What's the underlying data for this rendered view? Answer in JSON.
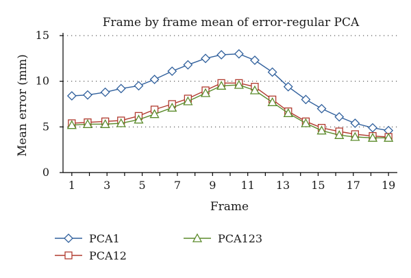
{
  "chart_data": {
    "type": "line",
    "title": "Frame by frame mean of error-regular PCA",
    "xlabel": "Frame",
    "ylabel": "Mean error (mm)",
    "xlim": [
      0.5,
      19.5
    ],
    "ylim": [
      0,
      15
    ],
    "xticks": [
      1,
      3,
      5,
      7,
      9,
      11,
      13,
      15,
      17,
      19
    ],
    "yticks": [
      0,
      5,
      10,
      15
    ],
    "grid": true,
    "legend_position": "bottom",
    "series": [
      {
        "name": "PCA1",
        "color": "#2f5f9c",
        "marker": "diamond",
        "x": [
          1,
          1.9,
          2.9,
          3.8,
          4.8,
          5.7,
          6.7,
          7.6,
          8.6,
          9.5,
          10.5,
          11.4,
          12.4,
          13.3,
          14.3,
          15.2,
          16.2,
          17.1,
          18.1,
          19
        ],
        "y": [
          8.4,
          8.5,
          8.8,
          9.2,
          9.5,
          10.2,
          11.1,
          11.8,
          12.5,
          12.9,
          13.0,
          12.3,
          11.0,
          9.4,
          8.0,
          7.0,
          6.1,
          5.4,
          4.9,
          4.6
        ]
      },
      {
        "name": "PCA12",
        "color": "#b03a2e",
        "marker": "square",
        "x": [
          1,
          1.9,
          2.9,
          3.8,
          4.8,
          5.7,
          6.7,
          7.6,
          8.6,
          9.5,
          10.5,
          11.4,
          12.4,
          13.3,
          14.3,
          15.2,
          16.2,
          17.1,
          18.1,
          19
        ],
        "y": [
          5.4,
          5.5,
          5.6,
          5.7,
          6.2,
          6.9,
          7.5,
          8.1,
          9.0,
          9.8,
          9.8,
          9.4,
          8.0,
          6.7,
          5.6,
          4.9,
          4.5,
          4.2,
          4.0,
          3.9
        ]
      },
      {
        "name": "PCA123",
        "color": "#5a8a2a",
        "marker": "triangle",
        "x": [
          1,
          1.9,
          2.9,
          3.8,
          4.8,
          5.7,
          6.7,
          7.6,
          8.6,
          9.5,
          10.5,
          11.4,
          12.4,
          13.3,
          14.3,
          15.2,
          16.2,
          17.1,
          18.1,
          19
        ],
        "y": [
          5.2,
          5.3,
          5.3,
          5.4,
          5.8,
          6.4,
          7.1,
          7.8,
          8.7,
          9.5,
          9.6,
          9.0,
          7.7,
          6.5,
          5.4,
          4.6,
          4.1,
          3.9,
          3.8,
          3.8
        ]
      }
    ]
  }
}
